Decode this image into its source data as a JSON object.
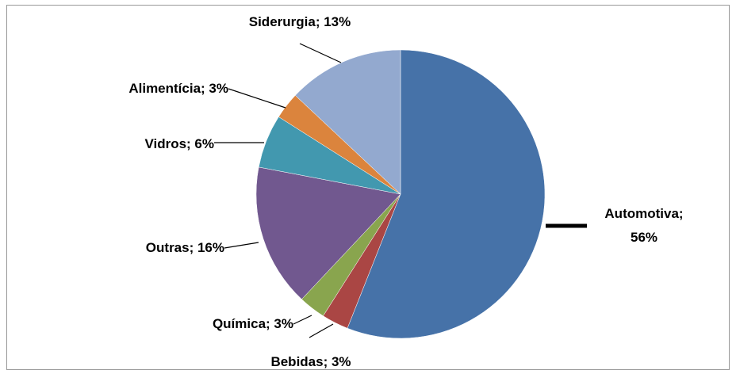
{
  "chart_data": {
    "type": "pie",
    "categories": [
      "Automotiva",
      "Bebidas",
      "Química",
      "Outras",
      "Vidros",
      "Alimentícia",
      "Siderurgia"
    ],
    "values": [
      56,
      3,
      3,
      16,
      6,
      3,
      13
    ],
    "value_labels": [
      "Automotiva; 56%",
      "Bebidas; 3%",
      "Química; 3%",
      "Outras; 16%",
      "Vidros; 6%",
      "Alimentícia; 3%",
      "Siderurgia; 13%"
    ],
    "colors": [
      "#4672a8",
      "#aa4644",
      "#89a54e",
      "#71588f",
      "#4298af",
      "#db843d",
      "#93a9cf"
    ]
  }
}
